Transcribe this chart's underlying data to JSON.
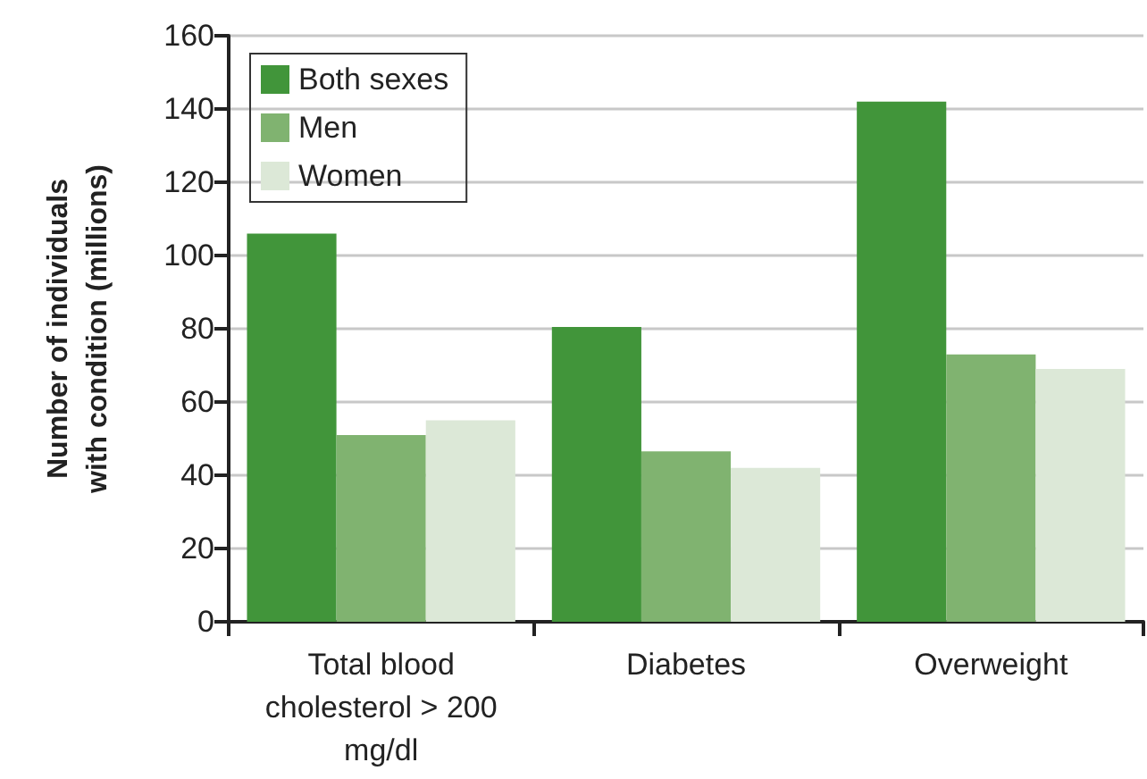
{
  "chart_data": {
    "type": "bar",
    "ylabel": "Number of individuals\nwith condition (millions)",
    "categories": [
      "Total blood\ncholesterol > 200\nmg/dl",
      "Diabetes",
      "Overweight"
    ],
    "series": [
      {
        "name": "Both sexes",
        "color": "#41953a",
        "values": [
          106,
          80.5,
          142
        ]
      },
      {
        "name": "Men",
        "color": "#80b370",
        "values": [
          51,
          46.5,
          73
        ]
      },
      {
        "name": "Women",
        "color": "#dce8d7",
        "values": [
          55,
          42,
          69
        ]
      }
    ],
    "ylim": [
      0,
      160
    ],
    "yticks": [
      0,
      20,
      40,
      60,
      80,
      100,
      120,
      140,
      160
    ],
    "grid": "y",
    "legend": "top left"
  }
}
